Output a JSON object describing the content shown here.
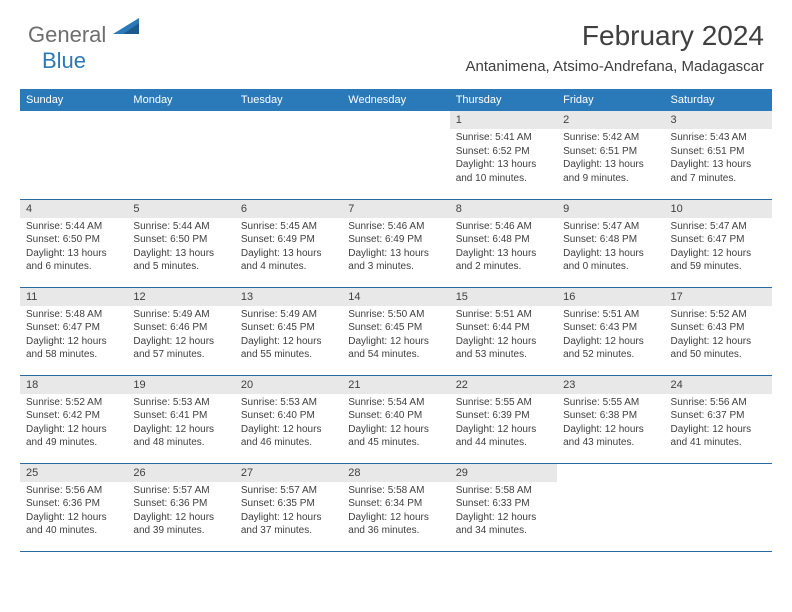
{
  "logo": {
    "general": "General",
    "blue": "Blue"
  },
  "title": "February 2024",
  "location": "Antanimena, Atsimo-Andrefana, Madagascar",
  "colors": {
    "header_bg": "#2a7ab9",
    "header_text": "#ffffff",
    "daynum_bg": "#e8e8e8",
    "body_text": "#404040",
    "rule": "#2a6aa0"
  },
  "dayHeaders": [
    "Sunday",
    "Monday",
    "Tuesday",
    "Wednesday",
    "Thursday",
    "Friday",
    "Saturday"
  ],
  "weeks": [
    [
      null,
      null,
      null,
      null,
      {
        "n": "1",
        "sr": "5:41 AM",
        "ss": "6:52 PM",
        "dl": "13 hours and 10 minutes."
      },
      {
        "n": "2",
        "sr": "5:42 AM",
        "ss": "6:51 PM",
        "dl": "13 hours and 9 minutes."
      },
      {
        "n": "3",
        "sr": "5:43 AM",
        "ss": "6:51 PM",
        "dl": "13 hours and 7 minutes."
      }
    ],
    [
      {
        "n": "4",
        "sr": "5:44 AM",
        "ss": "6:50 PM",
        "dl": "13 hours and 6 minutes."
      },
      {
        "n": "5",
        "sr": "5:44 AM",
        "ss": "6:50 PM",
        "dl": "13 hours and 5 minutes."
      },
      {
        "n": "6",
        "sr": "5:45 AM",
        "ss": "6:49 PM",
        "dl": "13 hours and 4 minutes."
      },
      {
        "n": "7",
        "sr": "5:46 AM",
        "ss": "6:49 PM",
        "dl": "13 hours and 3 minutes."
      },
      {
        "n": "8",
        "sr": "5:46 AM",
        "ss": "6:48 PM",
        "dl": "13 hours and 2 minutes."
      },
      {
        "n": "9",
        "sr": "5:47 AM",
        "ss": "6:48 PM",
        "dl": "13 hours and 0 minutes."
      },
      {
        "n": "10",
        "sr": "5:47 AM",
        "ss": "6:47 PM",
        "dl": "12 hours and 59 minutes."
      }
    ],
    [
      {
        "n": "11",
        "sr": "5:48 AM",
        "ss": "6:47 PM",
        "dl": "12 hours and 58 minutes."
      },
      {
        "n": "12",
        "sr": "5:49 AM",
        "ss": "6:46 PM",
        "dl": "12 hours and 57 minutes."
      },
      {
        "n": "13",
        "sr": "5:49 AM",
        "ss": "6:45 PM",
        "dl": "12 hours and 55 minutes."
      },
      {
        "n": "14",
        "sr": "5:50 AM",
        "ss": "6:45 PM",
        "dl": "12 hours and 54 minutes."
      },
      {
        "n": "15",
        "sr": "5:51 AM",
        "ss": "6:44 PM",
        "dl": "12 hours and 53 minutes."
      },
      {
        "n": "16",
        "sr": "5:51 AM",
        "ss": "6:43 PM",
        "dl": "12 hours and 52 minutes."
      },
      {
        "n": "17",
        "sr": "5:52 AM",
        "ss": "6:43 PM",
        "dl": "12 hours and 50 minutes."
      }
    ],
    [
      {
        "n": "18",
        "sr": "5:52 AM",
        "ss": "6:42 PM",
        "dl": "12 hours and 49 minutes."
      },
      {
        "n": "19",
        "sr": "5:53 AM",
        "ss": "6:41 PM",
        "dl": "12 hours and 48 minutes."
      },
      {
        "n": "20",
        "sr": "5:53 AM",
        "ss": "6:40 PM",
        "dl": "12 hours and 46 minutes."
      },
      {
        "n": "21",
        "sr": "5:54 AM",
        "ss": "6:40 PM",
        "dl": "12 hours and 45 minutes."
      },
      {
        "n": "22",
        "sr": "5:55 AM",
        "ss": "6:39 PM",
        "dl": "12 hours and 44 minutes."
      },
      {
        "n": "23",
        "sr": "5:55 AM",
        "ss": "6:38 PM",
        "dl": "12 hours and 43 minutes."
      },
      {
        "n": "24",
        "sr": "5:56 AM",
        "ss": "6:37 PM",
        "dl": "12 hours and 41 minutes."
      }
    ],
    [
      {
        "n": "25",
        "sr": "5:56 AM",
        "ss": "6:36 PM",
        "dl": "12 hours and 40 minutes."
      },
      {
        "n": "26",
        "sr": "5:57 AM",
        "ss": "6:36 PM",
        "dl": "12 hours and 39 minutes."
      },
      {
        "n": "27",
        "sr": "5:57 AM",
        "ss": "6:35 PM",
        "dl": "12 hours and 37 minutes."
      },
      {
        "n": "28",
        "sr": "5:58 AM",
        "ss": "6:34 PM",
        "dl": "12 hours and 36 minutes."
      },
      {
        "n": "29",
        "sr": "5:58 AM",
        "ss": "6:33 PM",
        "dl": "12 hours and 34 minutes."
      },
      null,
      null
    ]
  ],
  "labels": {
    "sunrise": "Sunrise: ",
    "sunset": "Sunset: ",
    "daylight": "Daylight: "
  }
}
